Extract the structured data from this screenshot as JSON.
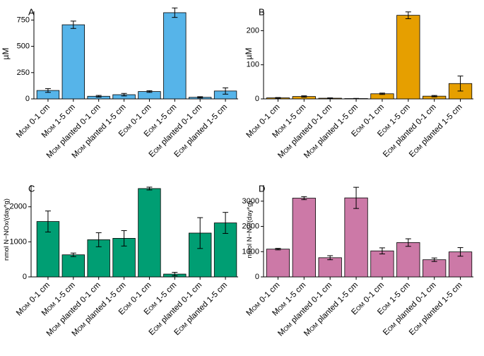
{
  "chart_data": [
    {
      "panel": "A",
      "type": "bar",
      "ylabel": "µM",
      "color": "#56B4E9",
      "ylim": [
        0,
        860
      ],
      "yticks": [
        0,
        250,
        500,
        750
      ],
      "categories": [
        {
          "pre": "M",
          "sub": "OM",
          "post": " 0-1 cm"
        },
        {
          "pre": "M",
          "sub": "OM",
          "post": " 1-5 cm"
        },
        {
          "pre": "M",
          "sub": "OM",
          "post": " planted 0-1 cm"
        },
        {
          "pre": "M",
          "sub": "OM",
          "post": " planted 1-5 cm"
        },
        {
          "pre": "E",
          "sub": "OM",
          "post": " 0-1 cm"
        },
        {
          "pre": "E",
          "sub": "OM",
          "post": " 1-5 cm"
        },
        {
          "pre": "E",
          "sub": "OM",
          "post": " planted 0-1 cm"
        },
        {
          "pre": "E",
          "sub": "OM",
          "post": " planted 1-5 cm"
        }
      ],
      "values": [
        80,
        705,
        25,
        40,
        70,
        820,
        15,
        75
      ],
      "errors": [
        18,
        35,
        8,
        12,
        8,
        45,
        6,
        30
      ]
    },
    {
      "panel": "B",
      "type": "bar",
      "ylabel": "µM",
      "color": "#E69F00",
      "ylim": [
        0,
        265
      ],
      "yticks": [
        0,
        100,
        200
      ],
      "categories": [
        {
          "pre": "M",
          "sub": "OM",
          "post": " 0-1 cm"
        },
        {
          "pre": "M",
          "sub": "OM",
          "post": " 1-5 cm"
        },
        {
          "pre": "M",
          "sub": "OM",
          "post": " planted 0-1 cm"
        },
        {
          "pre": "M",
          "sub": "OM",
          "post": " planted 1-5 cm"
        },
        {
          "pre": "E",
          "sub": "OM",
          "post": " 0-1 cm"
        },
        {
          "pre": "E",
          "sub": "OM",
          "post": " 1-5 cm"
        },
        {
          "pre": "E",
          "sub": "OM",
          "post": " planted 0-1 cm"
        },
        {
          "pre": "E",
          "sub": "OM",
          "post": " planted 1-5 cm"
        }
      ],
      "values": [
        3,
        7,
        2,
        1,
        15,
        245,
        8,
        45
      ],
      "errors": [
        1,
        2,
        1,
        0.5,
        2,
        10,
        2,
        22
      ]
    },
    {
      "panel": "C",
      "type": "bar",
      "ylabel": "nmol N−NOx/(day*g)",
      "color": "#009E73",
      "ylim": [
        0,
        2700
      ],
      "yticks": [
        0,
        1000,
        2000
      ],
      "categories": [
        {
          "pre": "M",
          "sub": "OM",
          "post": " 0-1 cm"
        },
        {
          "pre": "M",
          "sub": "OM",
          "post": " 1-5 cm"
        },
        {
          "pre": "M",
          "sub": "OM",
          "post": " planted 0-1 cm"
        },
        {
          "pre": "M",
          "sub": "OM",
          "post": " planted 1-5 cm"
        },
        {
          "pre": "E",
          "sub": "OM",
          "post": " 0-1 cm"
        },
        {
          "pre": "E",
          "sub": "OM",
          "post": " 1-5 cm"
        },
        {
          "pre": "E",
          "sub": "OM",
          "post": " planted 0-1 cm"
        },
        {
          "pre": "E",
          "sub": "OM",
          "post": " planted 1-5 cm"
        }
      ],
      "values": [
        1580,
        630,
        1060,
        1100,
        2520,
        80,
        1250,
        1540
      ],
      "errors": [
        300,
        50,
        200,
        220,
        40,
        50,
        440,
        300
      ]
    },
    {
      "panel": "D",
      "type": "bar",
      "ylabel": "nmol N−N2/(day*g)",
      "color": "#CC79A7",
      "ylim": [
        0,
        3750
      ],
      "yticks": [
        0,
        1000,
        2000,
        3000
      ],
      "categories": [
        {
          "pre": "M",
          "sub": "OM",
          "post": " 0-1 cm"
        },
        {
          "pre": "M",
          "sub": "OM",
          "post": " 1-5 cm"
        },
        {
          "pre": "M",
          "sub": "OM",
          "post": " planted 0-1 cm"
        },
        {
          "pre": "M",
          "sub": "OM",
          "post": " planted 1-5 cm"
        },
        {
          "pre": "E",
          "sub": "OM",
          "post": " 0-1 cm"
        },
        {
          "pre": "E",
          "sub": "OM",
          "post": " 1-5 cm"
        },
        {
          "pre": "E",
          "sub": "OM",
          "post": " planted 0-1 cm"
        },
        {
          "pre": "E",
          "sub": "OM",
          "post": " planted 1-5 cm"
        }
      ],
      "values": [
        1100,
        3120,
        760,
        3130,
        1030,
        1360,
        680,
        990
      ],
      "errors": [
        30,
        60,
        80,
        420,
        120,
        150,
        70,
        170
      ]
    }
  ]
}
